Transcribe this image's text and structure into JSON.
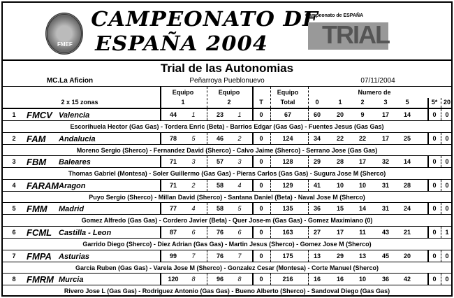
{
  "header": {
    "title_line1": "CAMPEONATO DE",
    "title_line2": "ESPAÑA 2004",
    "logo_left_text": "FMEF",
    "logo_right_caption": "Campeonato de ESPAÑA",
    "logo_right_text": "TRIAL"
  },
  "event": {
    "title": "Trial de las Autonomias",
    "club": "MC.La Aficion",
    "location": "Peñarroya Pueblonuevo",
    "date": "07/11/2004"
  },
  "columns": {
    "zones": "2 x 15 zonas",
    "equipo1_a": "Equipo",
    "equipo1_b": "1",
    "equipo2_a": "Equipo",
    "equipo2_b": "2",
    "t": "T",
    "total_a": "Equipo",
    "total_b": "Total",
    "numero": "Numero de",
    "n0": "0",
    "n1": "1",
    "n2": "2",
    "n3": "3",
    "n5": "5",
    "n5s": "5*",
    "n20": "20"
  },
  "rows": [
    {
      "rank": "1",
      "code": "FMCV",
      "region": "Valencia",
      "e1": "44",
      "e1p": "1",
      "e2": "23",
      "e2p": "1",
      "t": "0",
      "total": "67",
      "n0": "60",
      "n1": "20",
      "n2": "9",
      "n3": "17",
      "n5": "14",
      "n5s": "0",
      "n20": "0",
      "riders": "Escorihuela Hector (Gas Gas) - Tordera Enric (Beta) - Barrios Edgar (Gas Gas) - Fuentes Jesus (Gas Gas)"
    },
    {
      "rank": "2",
      "code": "FAM",
      "region": "Andalucia",
      "e1": "78",
      "e1p": "5",
      "e2": "46",
      "e2p": "2",
      "t": "0",
      "total": "124",
      "n0": "34",
      "n1": "22",
      "n2": "22",
      "n3": "17",
      "n5": "25",
      "n5s": "0",
      "n20": "0",
      "riders": "Moreno Sergio (Sherco) - Fernandez David (Sherco) - Calvo Jaime (Sherco) - Serrano Jose (Gas Gas)"
    },
    {
      "rank": "3",
      "code": "FBM",
      "region": "Baleares",
      "e1": "71",
      "e1p": "3",
      "e2": "57",
      "e2p": "3",
      "t": "0",
      "total": "128",
      "n0": "29",
      "n1": "28",
      "n2": "17",
      "n3": "32",
      "n5": "14",
      "n5s": "0",
      "n20": "0",
      "riders": "Thomas Gabriel (Montesa) - Soler Guillermo (Gas Gas) - Pieras Carlos (Gas Gas) - Sugura Jose M (Sherco)"
    },
    {
      "rank": "4",
      "code": "FARAM",
      "region": "Aragon",
      "e1": "71",
      "e1p": "2",
      "e2": "58",
      "e2p": "4",
      "t": "0",
      "total": "129",
      "n0": "41",
      "n1": "10",
      "n2": "10",
      "n3": "31",
      "n5": "28",
      "n5s": "0",
      "n20": "0",
      "riders": "Puyo Sergio (Sherco) - Millan David (Sherco) - Santana Daniel (Beta) - Naval Jose M (Sherco)"
    },
    {
      "rank": "5",
      "code": "FMM",
      "region": "Madrid",
      "e1": "77",
      "e1p": "4",
      "e2": "58",
      "e2p": "5",
      "t": "0",
      "total": "135",
      "n0": "36",
      "n1": "15",
      "n2": "14",
      "n3": "31",
      "n5": "24",
      "n5s": "0",
      "n20": "0",
      "riders": "Gomez Alfredo (Gas Gas) - Cordero Javier (Beta) - Quer Jose-m (Gas Gas) - Gomez Maximiano (0)"
    },
    {
      "rank": "6",
      "code": "FCML",
      "region": "Castilla - Leon",
      "e1": "87",
      "e1p": "6",
      "e2": "76",
      "e2p": "6",
      "t": "0",
      "total": "163",
      "n0": "27",
      "n1": "17",
      "n2": "11",
      "n3": "43",
      "n5": "21",
      "n5s": "0",
      "n20": "1",
      "riders": "Garrido Diego (Sherco) - Diez Adrian (Gas Gas) - Martin Jesus (Sherco) - Gomez Jose M (Sherco)"
    },
    {
      "rank": "7",
      "code": "FMPA",
      "region": "Asturias",
      "e1": "99",
      "e1p": "7",
      "e2": "76",
      "e2p": "7",
      "t": "0",
      "total": "175",
      "n0": "13",
      "n1": "29",
      "n2": "13",
      "n3": "45",
      "n5": "20",
      "n5s": "0",
      "n20": "0",
      "riders": "Garcia Ruben (Gas Gas) - Varela Jose M (Sherco) - Gonzalez Cesar (Montesa) - Corte Manuel (Sherco)"
    },
    {
      "rank": "8",
      "code": "FMRM",
      "region": "Murcia",
      "e1": "120",
      "e1p": "8",
      "e2": "96",
      "e2p": "8",
      "t": "0",
      "total": "216",
      "n0": "16",
      "n1": "16",
      "n2": "10",
      "n3": "36",
      "n5": "42",
      "n5s": "0",
      "n20": "0",
      "riders": "Rivero Jose L (Gas Gas) - Rodriguez Antonio (Gas Gas) - Bueno Alberto (Sherco) - Sandoval Diego (Gas Gas)"
    }
  ]
}
